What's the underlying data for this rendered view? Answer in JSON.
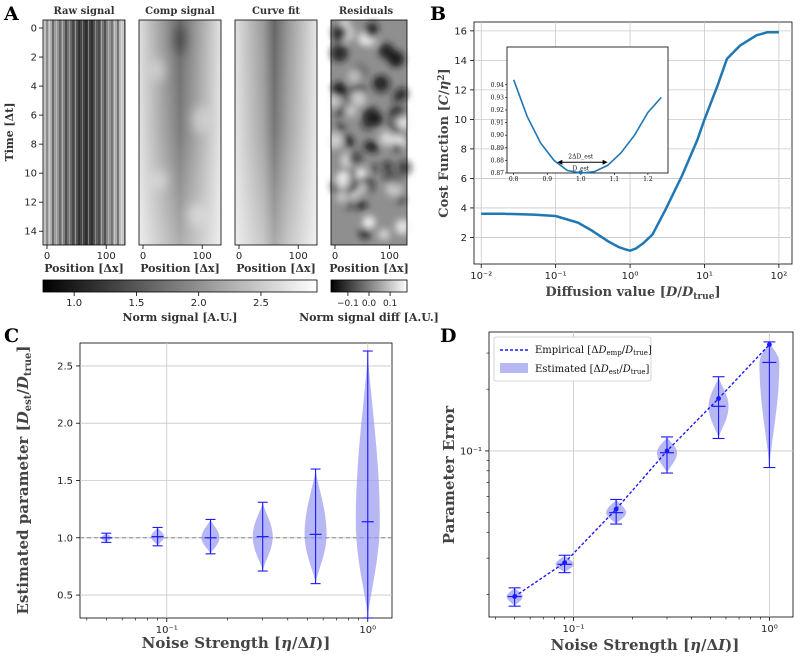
{
  "colors": {
    "accent": "#1f77b4",
    "dark_blue": "#1a1aff",
    "violin": "#9999ee",
    "grid": "#c8c8c8",
    "ref_line": "#888888"
  },
  "panel_a": {
    "label": "A",
    "titles": [
      "Raw signal",
      "Comp signal",
      "Curve fit",
      "Residuals"
    ],
    "ylabel": "Time [Δt]",
    "yticks": [
      "0",
      "2",
      "4",
      "6",
      "8",
      "10",
      "12",
      "14"
    ],
    "xlabel": "Position [Δx]",
    "xticks": [
      "0",
      "100"
    ],
    "colorbar1": {
      "label": "Norm signal [A.U.]",
      "ticks": [
        "1.0",
        "1.5",
        "2.0",
        "2.5"
      ]
    },
    "colorbar2": {
      "label": "Norm signal diff [A.U.]",
      "ticks": [
        "−0.1",
        "0.0",
        "0.1"
      ]
    }
  },
  "chart_data": [
    {
      "panel": "B",
      "type": "line",
      "xlabel": "Diffusion value [D/D_true]",
      "ylabel": "Cost Function [C/η²]",
      "xscale": "log",
      "xlim": [
        0.008,
        150
      ],
      "ylim": [
        0.2,
        16.6
      ],
      "yticks": [
        2,
        4,
        6,
        8,
        10,
        12,
        14,
        16
      ],
      "xticks": [
        "10⁻²",
        "10⁻¹",
        "10⁰",
        "10¹",
        "10²"
      ],
      "x": [
        0.01,
        0.02,
        0.05,
        0.1,
        0.2,
        0.3,
        0.5,
        0.7,
        0.85,
        1.0,
        1.2,
        1.5,
        2.0,
        3.0,
        5.0,
        8.0,
        10.0,
        15.0,
        20.0,
        30.0,
        50.0,
        70.0,
        100.0
      ],
      "y": [
        3.6,
        3.6,
        3.55,
        3.45,
        3.0,
        2.5,
        1.75,
        1.35,
        1.2,
        1.1,
        1.25,
        1.6,
        2.2,
        3.9,
        6.2,
        8.6,
        10.0,
        12.3,
        14.1,
        15.0,
        15.7,
        15.9,
        15.9
      ],
      "inset": {
        "xlim": [
          0.78,
          1.26
        ],
        "ylim": [
          0.87,
          0.97
        ],
        "xticks": [
          "0.8",
          "0.9",
          "1.0",
          "1.1",
          "1.2"
        ],
        "yticks": [
          "0.87",
          "0.88",
          "0.89",
          "0.90",
          "0.91",
          "0.92",
          "0.93",
          "0.94"
        ],
        "x": [
          0.8,
          0.84,
          0.88,
          0.92,
          0.96,
          1.0,
          1.04,
          1.08,
          1.12,
          1.16,
          1.2,
          1.24
        ],
        "y": [
          0.944,
          0.915,
          0.894,
          0.88,
          0.872,
          0.87,
          0.871,
          0.876,
          0.886,
          0.9,
          0.918,
          0.93
        ],
        "min_x": 1.0,
        "interval": [
          0.93,
          1.08
        ],
        "annotation_1": "2ΔD_est",
        "annotation_2": "D_est"
      }
    },
    {
      "panel": "C",
      "type": "violin",
      "xlabel": "Noise Strength [η/ΔI)]",
      "ylabel": "Estimated parameter [D_est/D_true]",
      "xscale": "log",
      "xlim": [
        0.037,
        1.32
      ],
      "ylim": [
        0.3,
        2.7
      ],
      "yticks": [
        0.5,
        1.0,
        1.5,
        2.0,
        2.5
      ],
      "xticks": [
        "10⁻¹",
        "10⁰"
      ],
      "reference_line": 1.0,
      "x": [
        0.05,
        0.09,
        0.165,
        0.3,
        0.55,
        1.0
      ],
      "median": [
        1.0,
        1.01,
        1.0,
        1.01,
        1.03,
        1.14
      ],
      "min": [
        0.96,
        0.93,
        0.86,
        0.71,
        0.6,
        0.3
      ],
      "max": [
        1.04,
        1.09,
        1.16,
        1.31,
        1.6,
        2.63
      ]
    },
    {
      "panel": "D",
      "type": "line",
      "xlabel": "Noise Strength [η/ΔI)]",
      "ylabel": "Parameter Error",
      "xscale": "log",
      "yscale": "log",
      "xlim": [
        0.037,
        1.32
      ],
      "ylim": [
        0.0155,
        0.38
      ],
      "xticks": [
        "10⁻¹",
        "10⁰"
      ],
      "yticks": [
        "10⁻¹"
      ],
      "series": [
        {
          "name": "Empirical [ΔD_emp/D_true]",
          "x": [
            0.05,
            0.09,
            0.165,
            0.3,
            0.55,
            1.0
          ],
          "values": [
            0.0195,
            0.0285,
            0.052,
            0.1,
            0.18,
            0.33
          ]
        },
        {
          "name": "Estimated [ΔD_est/D_true]",
          "x": [
            0.05,
            0.09,
            0.165,
            0.3,
            0.55,
            1.0
          ],
          "median": [
            0.0195,
            0.028,
            0.05,
            0.098,
            0.165,
            0.27
          ],
          "min": [
            0.0175,
            0.0255,
            0.044,
            0.078,
            0.115,
            0.083
          ],
          "max": [
            0.0215,
            0.031,
            0.058,
            0.117,
            0.23,
            0.34
          ]
        }
      ]
    }
  ]
}
